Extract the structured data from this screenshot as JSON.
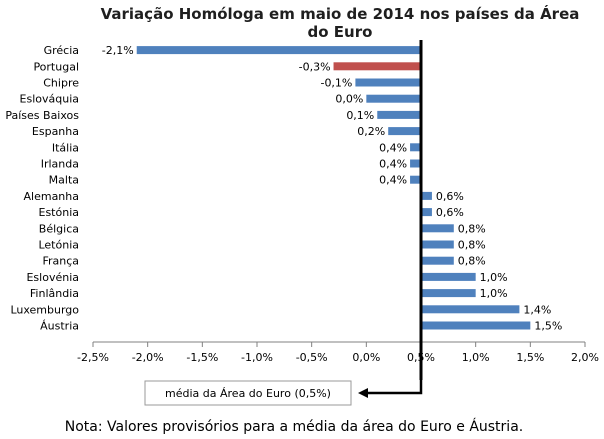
{
  "chart_data": {
    "type": "bar",
    "orientation": "horizontal",
    "title_lines": [
      "Variação Homóloga em maio de 2014 nos países da Área",
      "do Euro"
    ],
    "categories": [
      "Grécia",
      "Portugal",
      "Chipre",
      "Eslováquia",
      "Países Baixos",
      "Espanha",
      "Itália",
      "Irlanda",
      "Malta",
      "Alemanha",
      "Estónia",
      "Bélgica",
      "Letónia",
      "França",
      "Eslovénia",
      "Finlândia",
      "Luxemburgo",
      "Áustria"
    ],
    "values": [
      -2.1,
      -0.3,
      -0.1,
      0.0,
      0.1,
      0.2,
      0.4,
      0.4,
      0.4,
      0.6,
      0.6,
      0.8,
      0.8,
      0.8,
      1.0,
      1.0,
      1.4,
      1.5
    ],
    "data_labels": [
      "-2,1%",
      "-0,3%",
      "-0,1%",
      "0,0%",
      "0,1%",
      "0,2%",
      "0,4%",
      "0,4%",
      "0,4%",
      "0,6%",
      "0,6%",
      "0,8%",
      "0,8%",
      "0,8%",
      "1,0%",
      "1,0%",
      "1,4%",
      "1,5%"
    ],
    "baseline_value": 0.5,
    "xlim": [
      -2.5,
      2.0
    ],
    "xticks": [
      -2.5,
      -2.0,
      -1.5,
      -1.0,
      -0.5,
      0.0,
      0.5,
      1.0,
      1.5,
      2.0
    ],
    "xtick_labels": [
      "-2,5%",
      "-2,0%",
      "-1,5%",
      "-1,0%",
      "-0,5%",
      "0,0%",
      "0,5%",
      "1,0%",
      "1,5%",
      "2,0%"
    ],
    "colors": {
      "default": "#4f81bd",
      "highlight": "#c0504d",
      "baseline": "#000000"
    },
    "highlight_category": "Portugal",
    "grid": false,
    "callout": "média da Área do Euro (0,5%)"
  },
  "note": "Nota: Valores provisórios para a média da área do Euro e Áustria."
}
